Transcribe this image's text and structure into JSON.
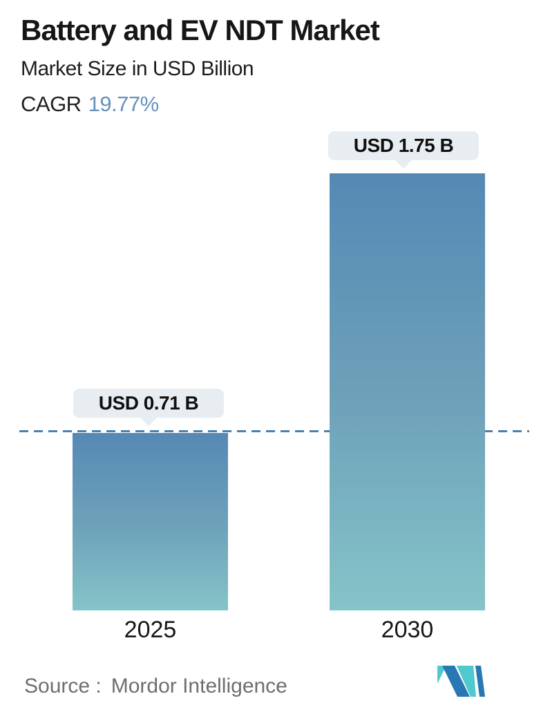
{
  "header": {
    "title": "Battery and EV NDT Market",
    "subtitle": "Market Size in USD Billion",
    "cagr_label": "CAGR",
    "cagr_value": "19.77%"
  },
  "chart_data": {
    "type": "bar",
    "title": "Battery and EV NDT Market",
    "subtitle": "Market Size in USD Billion",
    "cagr": "19.77%",
    "unit": "USD Billion",
    "categories": [
      "2025",
      "2030"
    ],
    "values": [
      0.71,
      1.75
    ],
    "value_labels": [
      "USD 0.71 B",
      "USD 1.75 B"
    ],
    "ylim": [
      0,
      1.95
    ],
    "grid": "off",
    "legend": "none",
    "reference_line": {
      "value": 0.71,
      "style": "dashed",
      "color": "#4a7fae"
    },
    "colors": {
      "bar_gradient_top": "#5589b4",
      "bar_gradient_bottom": "#85c4c9",
      "callout_background": "#e7edf0",
      "cagr_accent": "#6592bb",
      "text": "#161616"
    }
  },
  "footer": {
    "source_label": "Source :",
    "source_value": "Mordor Intelligence",
    "logo_name": "mordor-intelligence-logo",
    "logo_colors": {
      "blue": "#2878b4",
      "teal": "#4fc8ce"
    }
  }
}
